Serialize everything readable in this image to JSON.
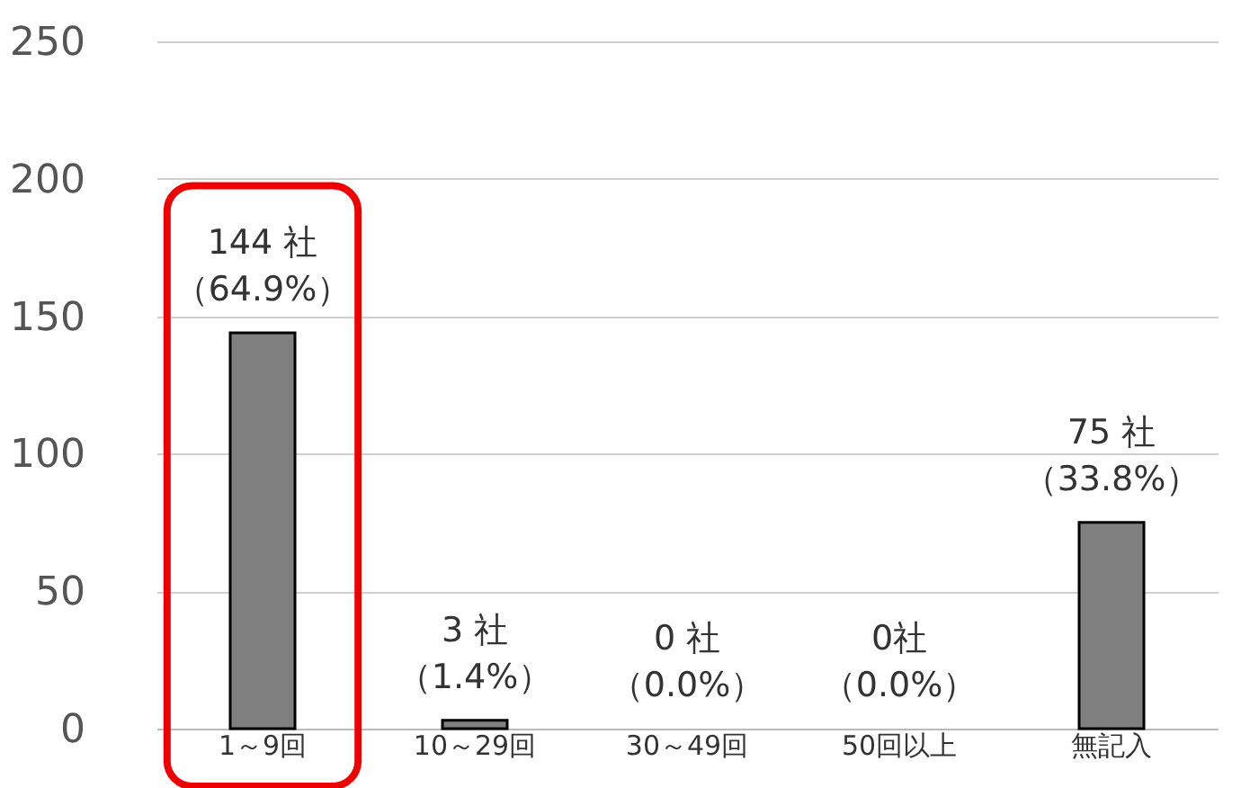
{
  "chart_data": {
    "type": "bar",
    "categories": [
      "1～9回",
      "10～29回",
      "30～49回",
      "50回以上",
      "無記入"
    ],
    "values": [
      144,
      3,
      0,
      0,
      75
    ],
    "color": "#808080",
    "value_labels": [
      "144 社（64.9%）",
      "3 社（1.4%）",
      "0 社（0.0%）",
      "0社（0.0%）",
      "75 社（33.8%）"
    ],
    "ylim": [
      0,
      250
    ],
    "yticks": [
      0,
      50,
      100,
      150,
      200,
      250
    ],
    "grid": "y"
  }
}
